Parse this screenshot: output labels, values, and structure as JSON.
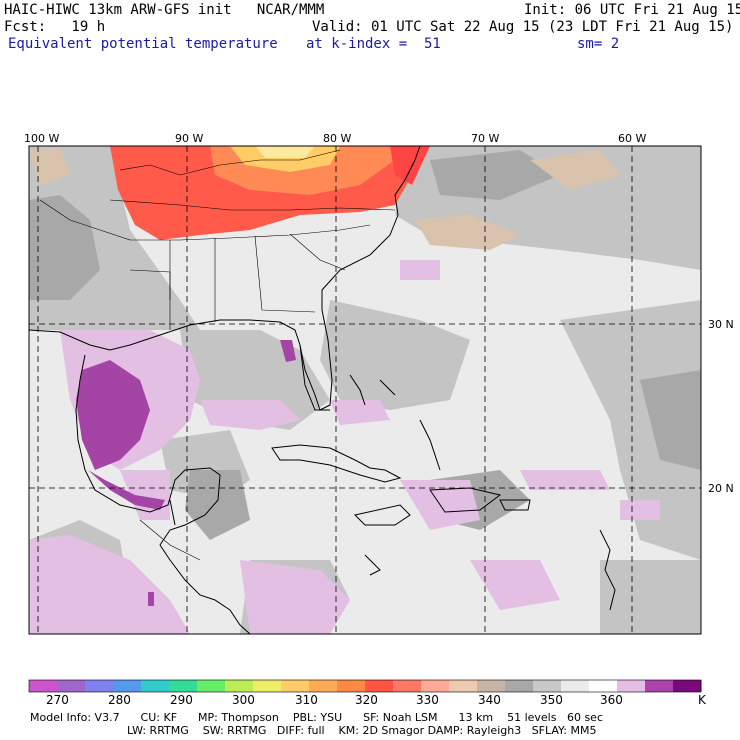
{
  "header": {
    "model": "HAIC-HIWC 13km ARW-GFS init   NCAR/MMM",
    "init": "Init: 06 UTC Fri 21 Aug 15",
    "fcst": "Fcst:   19 h",
    "valid": "Valid: 01 UTC Sat 22 Aug 15 (23 LDT Fri 21 Aug 15)",
    "field": "Equivalent potential temperature",
    "level": "at k-index =  51",
    "smooth": "sm= 2"
  },
  "map": {
    "lon_labels": [
      "100 W",
      "90 W",
      "80 W",
      "70 W",
      "60 W"
    ],
    "lat_labels": [
      "30 N",
      "20 N"
    ]
  },
  "colorbar": {
    "ticks": [
      "270",
      "280",
      "290",
      "300",
      "310",
      "320",
      "330",
      "340",
      "350",
      "360"
    ],
    "unit": "K",
    "colors": [
      "#cc55cc",
      "#a066cc",
      "#8080ee",
      "#5599ee",
      "#33cccc",
      "#33dd99",
      "#66ee66",
      "#bbee55",
      "#eeee66",
      "#ffcc66",
      "#ffaa55",
      "#ff8844",
      "#ff5544",
      "#ff7766",
      "#ffaa99",
      "#eecbb0",
      "#c8b4a4",
      "#a8a8a8",
      "#c8c8c8",
      "#ebebeb",
      "#ffffff",
      "#e6bde6",
      "#aa44aa",
      "#7a0a7a"
    ]
  },
  "footer": {
    "line1": "Model Info: V3.7      CU: KF      MP: Thompson    PBL: YSU      SF: Noah LSM      13 km    51 levels   60 sec",
    "line2": "LW: RRTMG    SW: RRTMG   DIFF: full    KM: 2D Smagor DAMP: Rayleigh3   SFLAY: MM5"
  }
}
